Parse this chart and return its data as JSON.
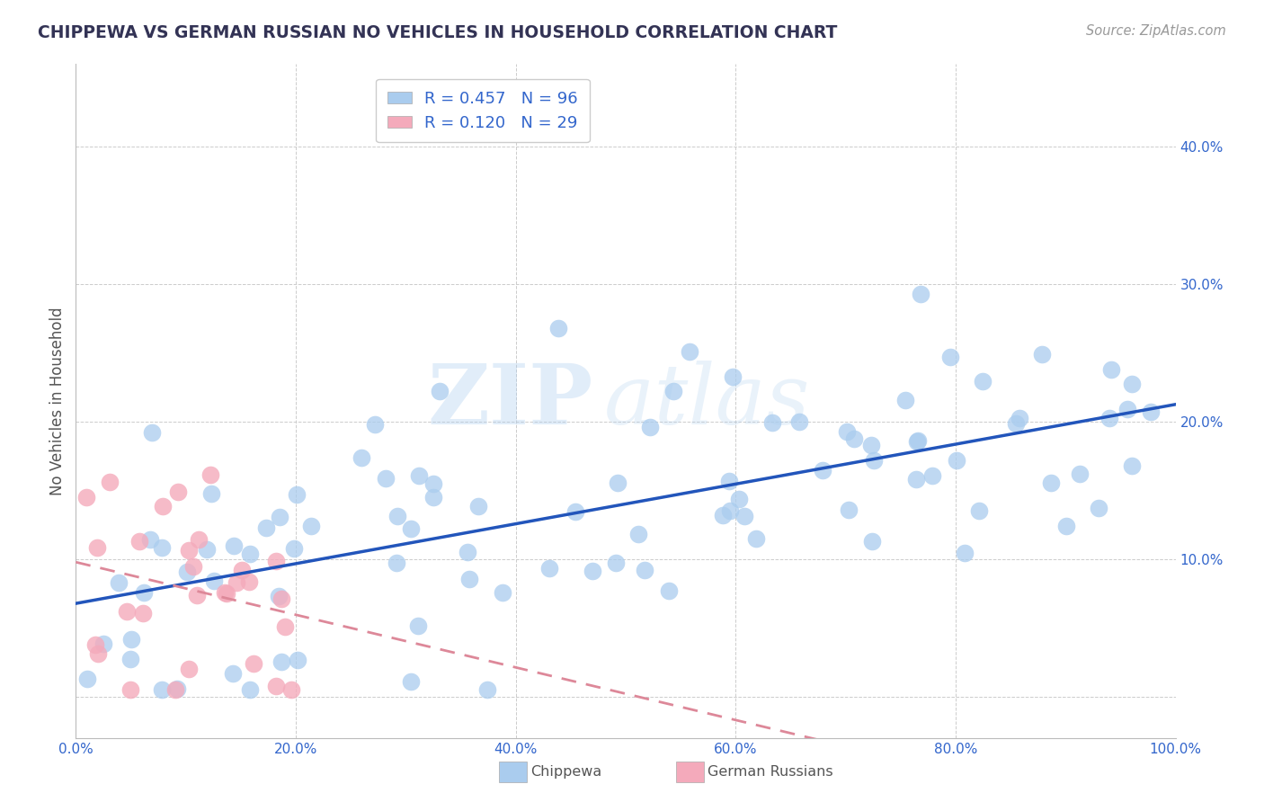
{
  "title": "CHIPPEWA VS GERMAN RUSSIAN NO VEHICLES IN HOUSEHOLD CORRELATION CHART",
  "source_text": "Source: ZipAtlas.com",
  "ylabel": "No Vehicles in Household",
  "xlim": [
    0.0,
    1.0
  ],
  "ylim": [
    -0.03,
    0.46
  ],
  "xticks": [
    0.0,
    0.2,
    0.4,
    0.6,
    0.8,
    1.0
  ],
  "yticks": [
    0.0,
    0.1,
    0.2,
    0.3,
    0.4
  ],
  "xtick_labels": [
    "0.0%",
    "20.0%",
    "40.0%",
    "60.0%",
    "80.0%",
    "100.0%"
  ],
  "ytick_labels": [
    "",
    "10.0%",
    "20.0%",
    "30.0%",
    "40.0%"
  ],
  "chippewa_color": "#aaccee",
  "german_color": "#f4aabb",
  "trend_blue": "#2255bb",
  "trend_pink": "#dd8899",
  "watermark_zip": "ZIP",
  "watermark_atlas": "atlas",
  "background_color": "#ffffff",
  "grid_color": "#cccccc",
  "legend_box_color": "#dddddd",
  "title_color": "#333355",
  "tick_color": "#3366cc",
  "ylabel_color": "#555555"
}
